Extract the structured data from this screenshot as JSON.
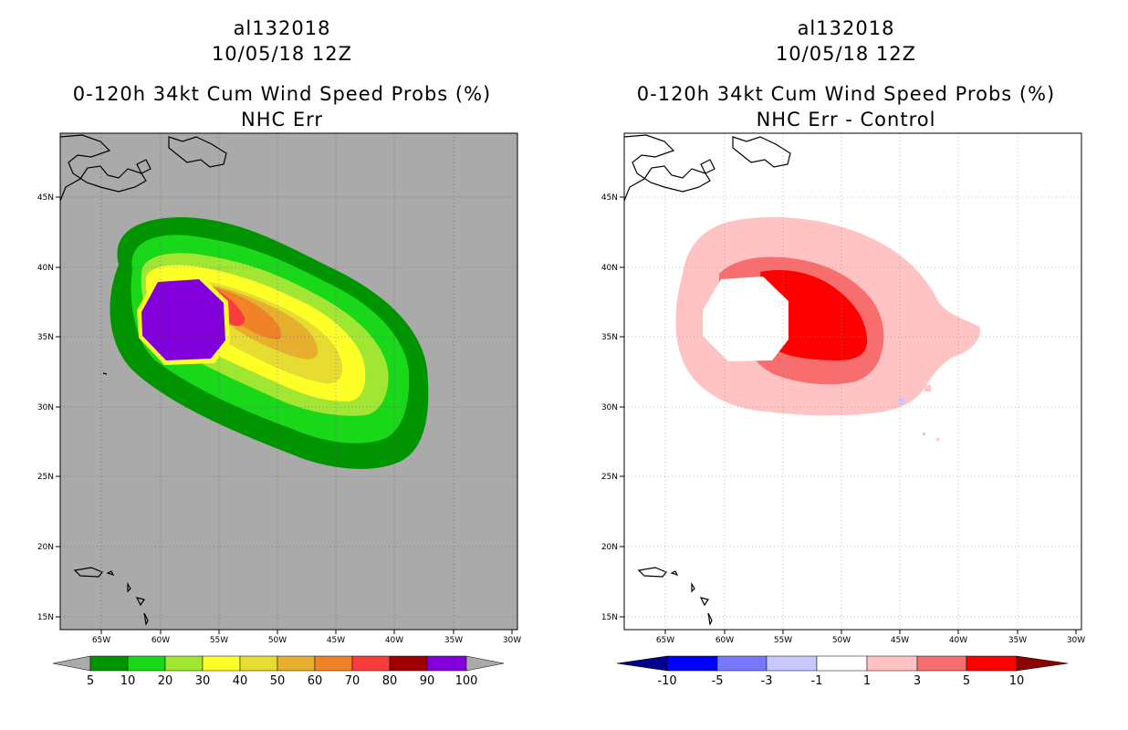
{
  "left": {
    "storm_id": "al132018",
    "datetime": "10/05/18 12Z",
    "title": "0-120h 34kt Cum Wind Speed Probs (%)",
    "subtitle": "NHC Err",
    "lon_labels": [
      "65W",
      "60W",
      "55W",
      "50W",
      "45W",
      "40W",
      "35W",
      "30W"
    ],
    "lat_labels": [
      "45N",
      "40N",
      "35N",
      "30N",
      "25N",
      "20N",
      "15N"
    ],
    "colorbar": {
      "labels": [
        "5",
        "10",
        "20",
        "30",
        "40",
        "50",
        "60",
        "70",
        "80",
        "90",
        "100"
      ],
      "colors": [
        "#009400",
        "#19d819",
        "#a0e632",
        "#ffff28",
        "#e6dc32",
        "#e6af2d",
        "#f08228",
        "#fa3c3c",
        "#a00000",
        "#8200dc"
      ],
      "end_color": "#aaaaaa"
    },
    "background_color": "#aaaaaa"
  },
  "right": {
    "storm_id": "al132018",
    "datetime": "10/05/18 12Z",
    "title": "0-120h 34kt Cum Wind Speed Probs (%)",
    "subtitle": "NHC Err - Control",
    "lon_labels": [
      "65W",
      "60W",
      "55W",
      "50W",
      "45W",
      "40W",
      "35W",
      "30W"
    ],
    "lat_labels": [
      "45N",
      "40N",
      "35N",
      "30N",
      "25N",
      "20N",
      "15N"
    ],
    "colorbar": {
      "labels": [
        "-10",
        "-5",
        "-3",
        "-1",
        "1",
        "3",
        "5",
        "10"
      ],
      "colors": [
        "#0000c8",
        "#0000ff",
        "#7878ff",
        "#c8c8ff",
        "#ffffff",
        "#ffc3c3",
        "#f86e6e",
        "#ff0000"
      ],
      "low_end_color": "#00008c",
      "high_end_color": "#8c0000"
    },
    "background_color": "#ffffff"
  }
}
